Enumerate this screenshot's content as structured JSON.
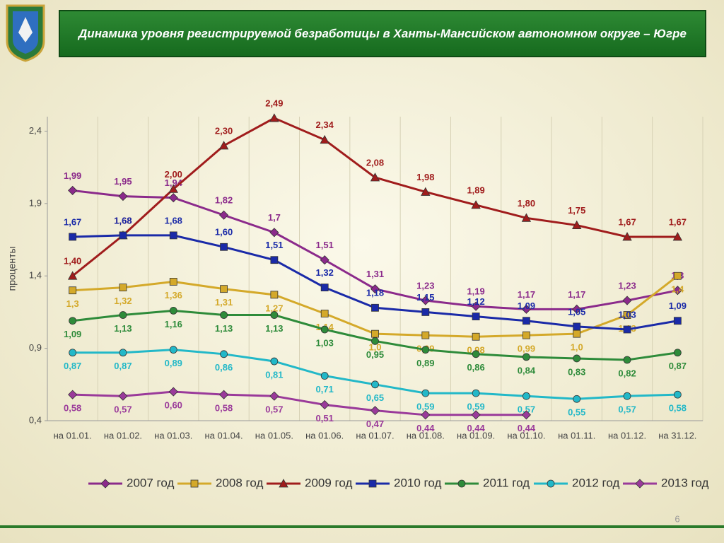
{
  "chart_data": {
    "type": "line",
    "title": "Динамика уровня регистрируемой безработицы в Ханты-Мансийском автономном округе – Югре",
    "y_label": "проценты",
    "page_number": "6",
    "categories": [
      "на 01.01.",
      "на 01.02.",
      "на 01.03.",
      "на 01.04.",
      "на 01.05.",
      "на 01.06.",
      "на 01.07.",
      "на 01.08.",
      "на 01.09.",
      "на 01.10.",
      "на 01.11.",
      "на 01.12.",
      "на 31.12."
    ],
    "ylim": [
      0.4,
      2.5
    ],
    "yticks": [
      {
        "value": 0.4,
        "label": "0,4"
      },
      {
        "value": 0.9,
        "label": "0,9"
      },
      {
        "value": 1.4,
        "label": "1,4"
      },
      {
        "value": 1.9,
        "label": "1,9"
      },
      {
        "value": 2.4,
        "label": "2,4"
      }
    ],
    "series": [
      {
        "name": "2007 год",
        "color": "#8b2a8b",
        "marker": "diamond",
        "label_pos": "above",
        "values": [
          1.99,
          1.95,
          1.94,
          1.82,
          1.7,
          1.51,
          1.31,
          1.23,
          1.19,
          1.17,
          1.17,
          1.23,
          1.3
        ],
        "value_labels": [
          "1,99",
          "1,95",
          "1,94",
          "1,82",
          "1,7",
          "1,51",
          "1,31",
          "1,23",
          "1,19",
          "1,17",
          "1,17",
          "1,23",
          "1,3"
        ]
      },
      {
        "name": "2008 год",
        "color": "#d4a92a",
        "marker": "square",
        "label_pos": "below",
        "values": [
          1.3,
          1.32,
          1.36,
          1.31,
          1.27,
          1.14,
          1.0,
          0.99,
          0.98,
          0.99,
          1.0,
          1.13,
          1.4
        ],
        "value_labels": [
          "1,3",
          "1,32",
          "1,36",
          "1,31",
          "1,27",
          "1,14",
          "1,0",
          "0,99",
          "0,98",
          "0,99",
          "1,0",
          "1,13",
          "1,4"
        ]
      },
      {
        "name": "2009 год",
        "color": "#a01c1c",
        "marker": "triangle",
        "label_pos": "above",
        "values": [
          1.4,
          1.68,
          2.0,
          2.3,
          2.49,
          2.34,
          2.08,
          1.98,
          1.89,
          1.8,
          1.75,
          1.67,
          1.67
        ],
        "value_labels": [
          "1,40",
          "1,68",
          "2,00",
          "2,30",
          "2,49",
          "2,34",
          "2,08",
          "1,98",
          "1,89",
          "1,80",
          "1,75",
          "1,67",
          "1,67"
        ]
      },
      {
        "name": "2010 год",
        "color": "#1a2aa8",
        "marker": "square",
        "label_pos": "above",
        "values": [
          1.67,
          1.68,
          1.68,
          1.6,
          1.51,
          1.32,
          1.18,
          1.15,
          1.12,
          1.09,
          1.05,
          1.03,
          1.09
        ],
        "value_labels": [
          "1,67",
          "1,68",
          "1,68",
          "1,60",
          "1,51",
          "1,32",
          "1,18",
          "1,15",
          "1,12",
          "1,09",
          "1,05",
          "1,03",
          "1,09"
        ]
      },
      {
        "name": "2011 год",
        "color": "#2e8b3a",
        "marker": "circle",
        "label_pos": "below",
        "values": [
          1.09,
          1.13,
          1.16,
          1.13,
          1.13,
          1.03,
          0.95,
          0.89,
          0.86,
          0.84,
          0.83,
          0.82,
          0.87
        ],
        "value_labels": [
          "1,09",
          "1,13",
          "1,16",
          "1,13",
          "1,13",
          "1,03",
          "0,95",
          "0,89",
          "0,86",
          "0,84",
          "0,83",
          "0,82",
          "0,87"
        ]
      },
      {
        "name": "2012 год",
        "color": "#22b8c8",
        "marker": "circle",
        "label_pos": "below",
        "values": [
          0.87,
          0.87,
          0.89,
          0.86,
          0.81,
          0.71,
          0.65,
          0.59,
          0.59,
          0.57,
          0.55,
          0.57,
          0.58
        ],
        "value_labels": [
          "0,87",
          "0,87",
          "0,89",
          "0,86",
          "0,81",
          "0,71",
          "0,65",
          "0,59",
          "0,59",
          "0,57",
          "0,55",
          "0,57",
          "0,58"
        ]
      },
      {
        "name": "2013 год",
        "color": "#9a3a9a",
        "marker": "diamond",
        "label_pos": "below",
        "values": [
          0.58,
          0.57,
          0.6,
          0.58,
          0.57,
          0.51,
          0.47,
          0.44,
          0.44,
          0.44,
          null,
          null,
          null
        ],
        "value_labels": [
          "0,58",
          "0,57",
          "0,60",
          "0,58",
          "0,57",
          "0,51",
          "0,47",
          "0,44",
          "0,44",
          "0,44",
          null,
          null,
          null
        ]
      }
    ]
  }
}
